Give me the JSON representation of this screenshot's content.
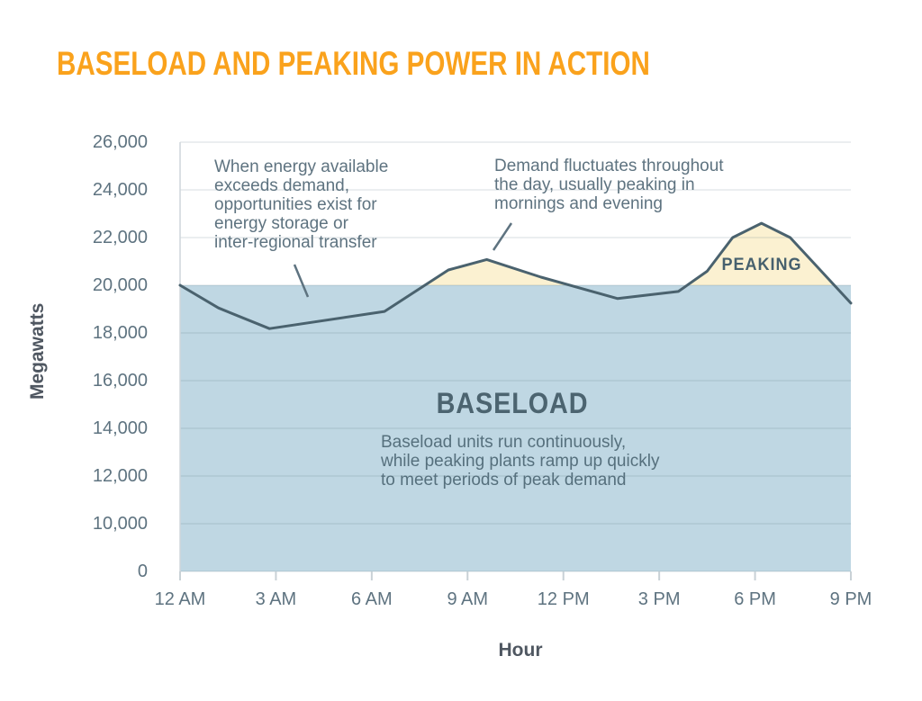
{
  "page": {
    "title": "BASELOAD AND PEAKING POWER IN ACTION"
  },
  "colors": {
    "title_orange": "#FAA21C",
    "baseload_fill": "#BFD7E3",
    "peaking_fill": "#FBF1D1",
    "demand_line": "#4A626E",
    "gridline": "rgba(94,118,130,0.20)",
    "axis_border": "#CFD6DB",
    "tick": "#C9D1D6",
    "leader_line": "#5E7380",
    "slate_text": "#5E7380",
    "dark_slate_text": "#4C6470"
  },
  "annotations": {
    "storage": "When energy available\nexceeds demand,\nopportunities exist for\nenergy storage or\ninter-regional transfer",
    "demand": "Demand fluctuates throughout\nthe day, usually peaking in\nmornings and evening",
    "baseload_caption": "Baseload units run continuously,\nwhile peaking plants ramp up quickly\nto meet periods of peak demand",
    "baseload_label": "BASELOAD",
    "peaking_label": "PEAKING"
  },
  "chart_data": {
    "type": "area",
    "title": "BASELOAD AND PEAKING POWER IN ACTION",
    "xlabel": "Hour",
    "ylabel": "Megawatts",
    "x_ticks": [
      "12 AM",
      "3 AM",
      "6 AM",
      "9 AM",
      "12 PM",
      "3 PM",
      "6 PM",
      "9 PM"
    ],
    "x_tick_hours": [
      0,
      3,
      6,
      9,
      12,
      15,
      18,
      21
    ],
    "y_ticks": [
      "26,000",
      "24,000",
      "22,000",
      "20,000",
      "18,000",
      "16,000",
      "14,000",
      "12,000",
      "10,000",
      "0"
    ],
    "y_tick_values": [
      26000,
      24000,
      22000,
      20000,
      18000,
      16000,
      14000,
      12000,
      10000,
      0
    ],
    "y_axis_note": "broken axis: 0 plotted one step below 10,000",
    "grid": true,
    "legend": "none",
    "baseload_level": 20000,
    "xlim_hours": [
      0,
      21
    ],
    "series": [
      {
        "name": "Demand",
        "points_hour_mw": [
          [
            0,
            20000
          ],
          [
            1.2,
            19050
          ],
          [
            2.8,
            18180
          ],
          [
            6.4,
            18900
          ],
          [
            8.4,
            20640
          ],
          [
            9.6,
            21080
          ],
          [
            11.3,
            20340
          ],
          [
            13.7,
            19440
          ],
          [
            15.6,
            19740
          ],
          [
            16.5,
            20590
          ],
          [
            17.3,
            22000
          ],
          [
            18.2,
            22600
          ],
          [
            19.1,
            22000
          ],
          [
            21,
            19250
          ]
        ]
      }
    ]
  }
}
